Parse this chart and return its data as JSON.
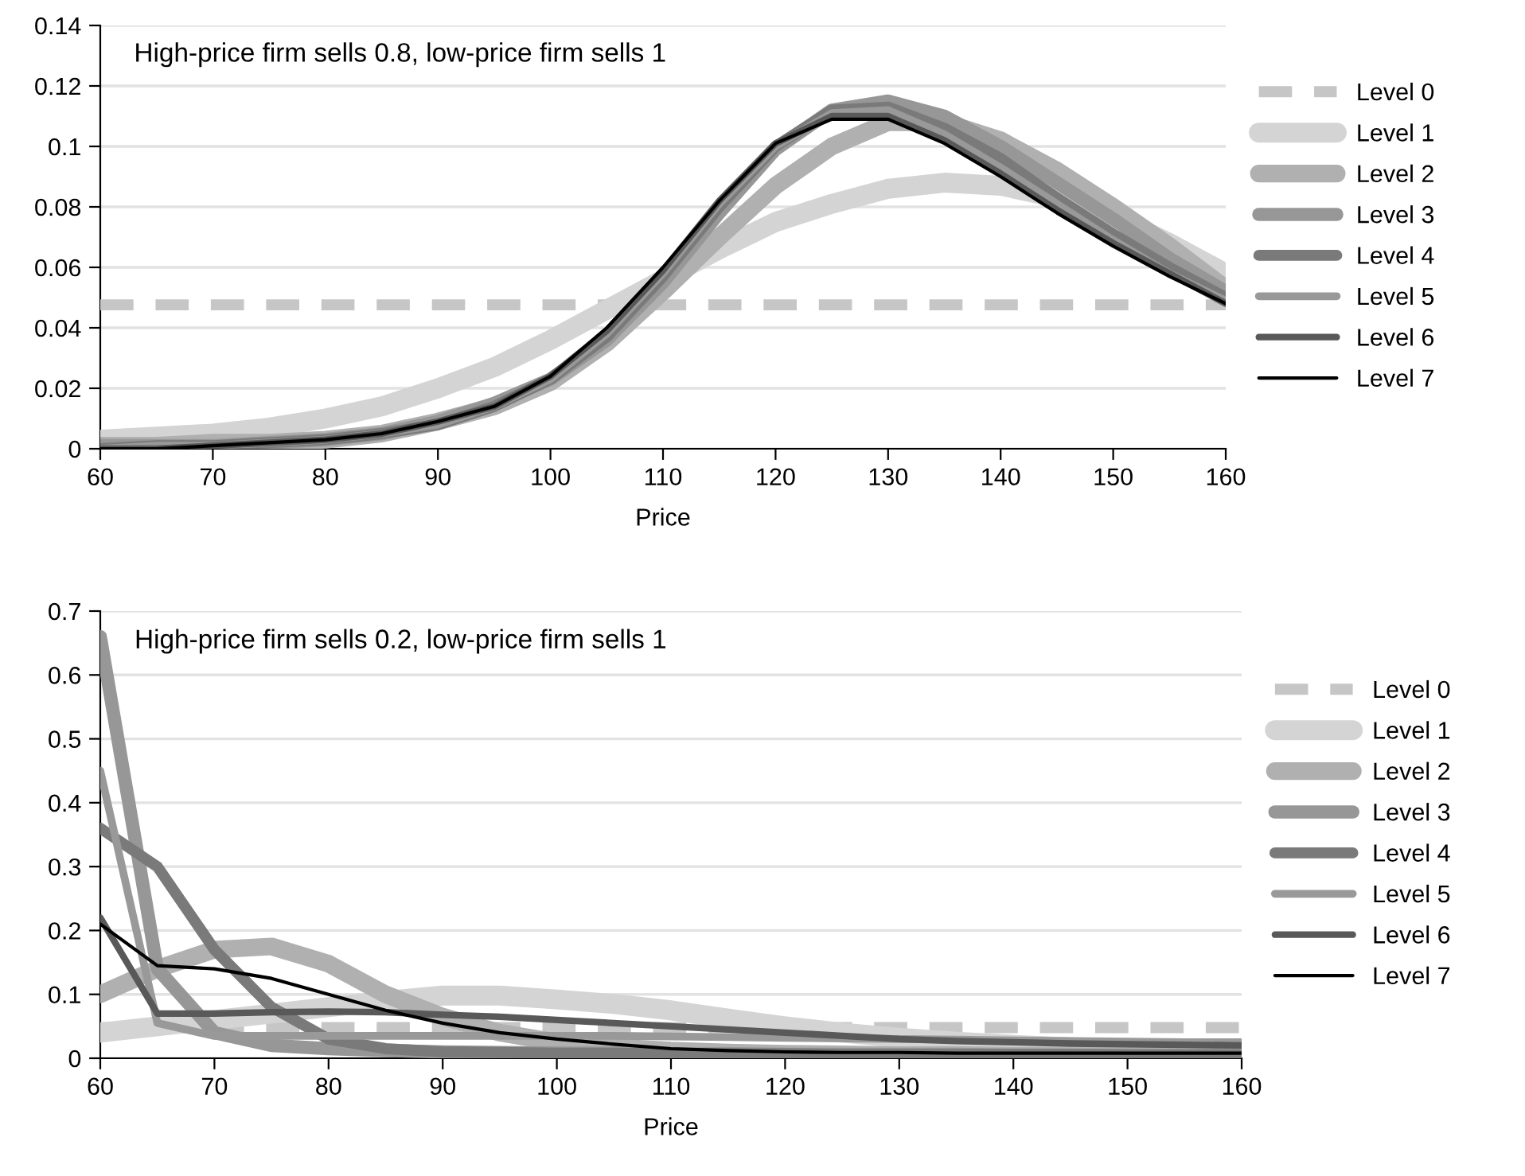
{
  "chart_data": [
    {
      "type": "line",
      "title": "High-price firm sells 0.8, low-price firm sells 1",
      "xlabel": "Price",
      "x": [
        60,
        65,
        70,
        75,
        80,
        85,
        90,
        95,
        100,
        105,
        110,
        115,
        120,
        125,
        130,
        135,
        140,
        145,
        150,
        155,
        160
      ],
      "xlim": [
        60,
        160
      ],
      "xticks": [
        60,
        70,
        80,
        90,
        100,
        110,
        120,
        130,
        140,
        150,
        160
      ],
      "ylim": [
        0,
        0.14
      ],
      "yticks": [
        0,
        0.02,
        0.04,
        0.06,
        0.08,
        0.1,
        0.12,
        0.14
      ],
      "grid": "y",
      "legend": "right",
      "series": [
        {
          "name": "Level 0",
          "color": "#c6c6c6",
          "line_style": "dashed",
          "values": [
            0.0476,
            0.0476,
            0.0476,
            0.0476,
            0.0476,
            0.0476,
            0.0476,
            0.0476,
            0.0476,
            0.0476,
            0.0476,
            0.0476,
            0.0476,
            0.0476,
            0.0476,
            0.0476,
            0.0476,
            0.0476,
            0.0476,
            0.0476,
            0.0476
          ]
        },
        {
          "name": "Level 1",
          "color": "#d4d4d4",
          "values": [
            0.003,
            0.004,
            0.005,
            0.007,
            0.01,
            0.014,
            0.02,
            0.027,
            0.036,
            0.046,
            0.056,
            0.066,
            0.075,
            0.081,
            0.086,
            0.088,
            0.087,
            0.083,
            0.077,
            0.068,
            0.058
          ]
        },
        {
          "name": "Level 2",
          "color": "#b0b0b0",
          "values": [
            0.001,
            0.001,
            0.002,
            0.002,
            0.003,
            0.005,
            0.009,
            0.014,
            0.022,
            0.035,
            0.052,
            0.07,
            0.087,
            0.1,
            0.108,
            0.108,
            0.102,
            0.092,
            0.08,
            0.067,
            0.053
          ]
        },
        {
          "name": "Level 3",
          "color": "#979797",
          "values": [
            0.001,
            0.001,
            0.001,
            0.002,
            0.003,
            0.005,
            0.009,
            0.015,
            0.023,
            0.036,
            0.055,
            0.078,
            0.099,
            0.112,
            0.115,
            0.11,
            0.1,
            0.088,
            0.076,
            0.063,
            0.052
          ]
        },
        {
          "name": "Level 4",
          "color": "#7a7a7a",
          "values": [
            0,
            0.001,
            0.001,
            0.002,
            0.003,
            0.005,
            0.008,
            0.014,
            0.023,
            0.037,
            0.057,
            0.08,
            0.1,
            0.112,
            0.113,
            0.106,
            0.096,
            0.083,
            0.071,
            0.06,
            0.05
          ]
        },
        {
          "name": "Level 5",
          "color": "#999999",
          "values": [
            0,
            0.001,
            0.001,
            0.002,
            0.003,
            0.005,
            0.008,
            0.014,
            0.023,
            0.038,
            0.058,
            0.081,
            0.1,
            0.111,
            0.112,
            0.104,
            0.093,
            0.081,
            0.069,
            0.058,
            0.049
          ]
        },
        {
          "name": "Level 6",
          "color": "#595959",
          "values": [
            0,
            0,
            0.001,
            0.002,
            0.003,
            0.005,
            0.009,
            0.014,
            0.024,
            0.039,
            0.059,
            0.082,
            0.101,
            0.11,
            0.11,
            0.102,
            0.091,
            0.079,
            0.068,
            0.058,
            0.048
          ]
        },
        {
          "name": "Level 7",
          "color": "#000000",
          "values": [
            0,
            0,
            0.001,
            0.002,
            0.003,
            0.005,
            0.009,
            0.014,
            0.024,
            0.04,
            0.06,
            0.082,
            0.101,
            0.109,
            0.109,
            0.101,
            0.09,
            0.078,
            0.067,
            0.057,
            0.048
          ]
        }
      ]
    },
    {
      "type": "line",
      "title": "High-price firm sells 0.2, low-price firm sells 1",
      "xlabel": "Price",
      "x": [
        60,
        65,
        70,
        75,
        80,
        85,
        90,
        95,
        100,
        105,
        110,
        115,
        120,
        125,
        130,
        135,
        140,
        145,
        150,
        155,
        160
      ],
      "xlim": [
        60,
        160
      ],
      "xticks": [
        60,
        70,
        80,
        90,
        100,
        110,
        120,
        130,
        140,
        150,
        160
      ],
      "ylim": [
        0,
        0.7
      ],
      "yticks": [
        0,
        0.1,
        0.2,
        0.3,
        0.4,
        0.5,
        0.6,
        0.7
      ],
      "grid": "y",
      "legend": "right",
      "series": [
        {
          "name": "Level 0",
          "color": "#c6c6c6",
          "line_style": "dashed",
          "values": [
            0.048,
            0.048,
            0.048,
            0.048,
            0.048,
            0.048,
            0.048,
            0.048,
            0.048,
            0.048,
            0.048,
            0.048,
            0.048,
            0.048,
            0.048,
            0.048,
            0.048,
            0.048,
            0.048,
            0.048,
            0.048
          ]
        },
        {
          "name": "Level 1",
          "color": "#d4d4d4",
          "values": [
            0.04,
            0.05,
            0.06,
            0.07,
            0.08,
            0.09,
            0.098,
            0.098,
            0.092,
            0.085,
            0.075,
            0.062,
            0.05,
            0.04,
            0.032,
            0.026,
            0.021,
            0.017,
            0.013,
            0.01,
            0.008
          ]
        },
        {
          "name": "Level 2",
          "color": "#b0b0b0",
          "values": [
            0.1,
            0.14,
            0.17,
            0.175,
            0.148,
            0.1,
            0.065,
            0.04,
            0.025,
            0.017,
            0.012,
            0.009,
            0.007,
            0.006,
            0.005,
            0.005,
            0.004,
            0.004,
            0.004,
            0.004,
            0.004
          ]
        },
        {
          "name": "Level 3",
          "color": "#979797",
          "values": [
            0.66,
            0.14,
            0.04,
            0.02,
            0.015,
            0.012,
            0.01,
            0.009,
            0.008,
            0.008,
            0.007,
            0.007,
            0.006,
            0.006,
            0.006,
            0.006,
            0.005,
            0.005,
            0.005,
            0.005,
            0.005
          ]
        },
        {
          "name": "Level 4",
          "color": "#7a7a7a",
          "values": [
            0.36,
            0.3,
            0.17,
            0.08,
            0.03,
            0.015,
            0.01,
            0.009,
            0.008,
            0.008,
            0.007,
            0.007,
            0.007,
            0.006,
            0.006,
            0.006,
            0.006,
            0.006,
            0.005,
            0.005,
            0.005
          ]
        },
        {
          "name": "Level 5",
          "color": "#999999",
          "values": [
            0.45,
            0.055,
            0.035,
            0.035,
            0.035,
            0.035,
            0.035,
            0.035,
            0.035,
            0.035,
            0.034,
            0.033,
            0.032,
            0.031,
            0.03,
            0.029,
            0.028,
            0.027,
            0.026,
            0.025,
            0.025
          ]
        },
        {
          "name": "Level 6",
          "color": "#595959",
          "values": [
            0.22,
            0.07,
            0.07,
            0.072,
            0.073,
            0.072,
            0.068,
            0.065,
            0.06,
            0.055,
            0.05,
            0.045,
            0.04,
            0.035,
            0.03,
            0.027,
            0.025,
            0.023,
            0.022,
            0.021,
            0.02
          ]
        },
        {
          "name": "Level 7",
          "color": "#000000",
          "values": [
            0.21,
            0.145,
            0.14,
            0.125,
            0.1,
            0.075,
            0.055,
            0.04,
            0.03,
            0.022,
            0.015,
            0.012,
            0.01,
            0.009,
            0.009,
            0.008,
            0.008,
            0.008,
            0.008,
            0.008,
            0.008
          ]
        }
      ]
    }
  ]
}
